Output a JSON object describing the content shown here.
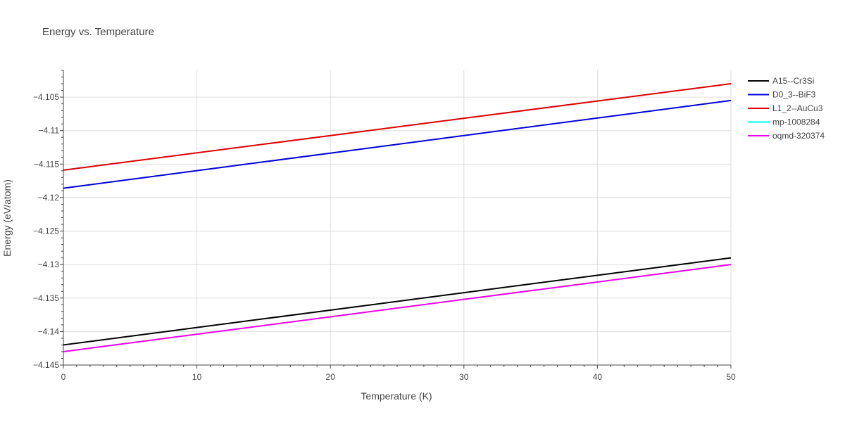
{
  "chart_data": {
    "type": "line",
    "title": "Energy vs. Temperature",
    "xlabel": "Temperature (K)",
    "ylabel": "Energy (eV/atom)",
    "xlim": [
      0,
      50
    ],
    "ylim": [
      -4.145,
      -4.101
    ],
    "xticks": [
      0,
      10,
      20,
      30,
      40,
      50
    ],
    "xtick_labels": [
      "0",
      "10",
      "20",
      "30",
      "40",
      "50"
    ],
    "yticks": [
      -4.145,
      -4.14,
      -4.135,
      -4.13,
      -4.125,
      -4.12,
      -4.115,
      -4.11,
      -4.105
    ],
    "ytick_labels": [
      "−4.145",
      "−4.14",
      "−4.135",
      "−4.13",
      "−4.125",
      "−4.12",
      "−4.115",
      "−4.11",
      "−4.105"
    ],
    "grid": true,
    "legend_position": "top-right",
    "series": [
      {
        "name": "A15--Cr3Si",
        "color": "#000000",
        "x": [
          0,
          50
        ],
        "y": [
          -4.142,
          -4.129
        ]
      },
      {
        "name": "D0_3--BiF3",
        "color": "#0000dd",
        "x": [
          0,
          50
        ],
        "y": [
          -4.1186,
          -4.1055
        ]
      },
      {
        "name": "L1_2--AuCu3",
        "color": "#dd0000",
        "x": [
          0,
          50
        ],
        "y": [
          -4.1159,
          -4.103
        ]
      },
      {
        "name": "mp-1008284",
        "color": "#00ffff",
        "x": [],
        "y": []
      },
      {
        "name": "oqmd-320374",
        "color": "#ee00ee",
        "x": [
          0,
          50
        ],
        "y": [
          -4.143,
          -4.13
        ]
      }
    ]
  }
}
